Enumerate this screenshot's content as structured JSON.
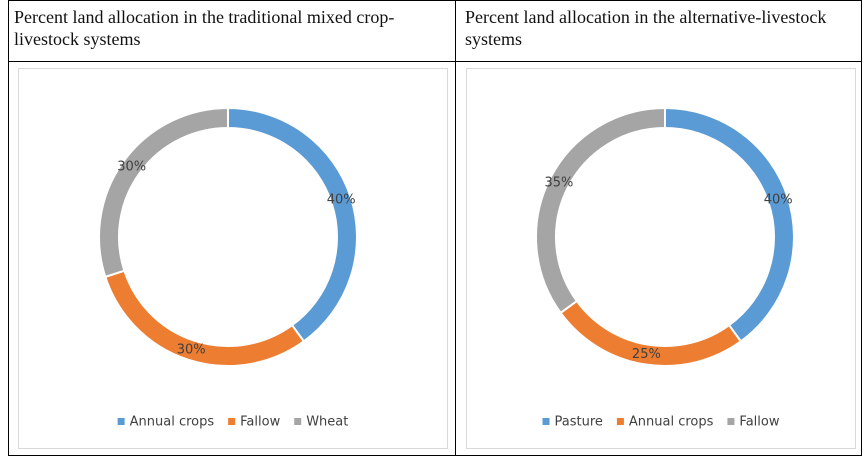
{
  "chart_data": [
    {
      "type": "donut",
      "title": "Percent land allocation in the traditional mixed crop-livestock systems",
      "categories": [
        "Annual crops",
        "Fallow",
        "Wheat"
      ],
      "values": [
        40,
        30,
        30
      ],
      "value_labels": [
        "40%",
        "30%",
        "30%"
      ],
      "colors": [
        "#5b9bd5",
        "#ed7d31",
        "#a5a5a5"
      ],
      "legend": "bottom"
    },
    {
      "type": "donut",
      "title": "Percent land allocation in the alternative-livestock systems",
      "categories": [
        "Pasture",
        "Annual crops",
        "Fallow"
      ],
      "values": [
        40,
        25,
        35
      ],
      "value_labels": [
        "40%",
        "25%",
        "35%"
      ],
      "colors": [
        "#5b9bd5",
        "#ed7d31",
        "#a5a5a5"
      ],
      "legend": "bottom"
    }
  ]
}
